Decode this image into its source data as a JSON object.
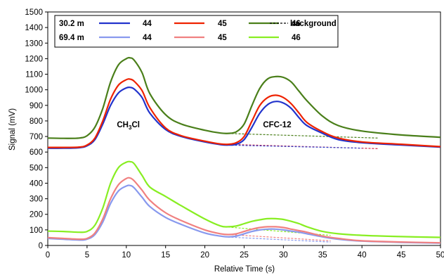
{
  "chart_data": {
    "type": "line",
    "xlabel": "Relative Time (s)",
    "ylabel": "Signal (mV)",
    "xlim": [
      0,
      50
    ],
    "ylim": [
      0,
      1500
    ],
    "x_ticks": [
      0,
      5,
      10,
      15,
      20,
      25,
      30,
      35,
      40,
      45,
      50
    ],
    "y_ticks": [
      0,
      100,
      200,
      300,
      400,
      500,
      600,
      700,
      800,
      900,
      1000,
      1100,
      1200,
      1300,
      1400,
      1500
    ],
    "grid": false,
    "legend": {
      "placement": "top-left",
      "row_labels": [
        "30.2 m",
        "69.4 m"
      ],
      "entries": [
        {
          "row": 0,
          "label": "44",
          "color": "#2233cc",
          "dash": false
        },
        {
          "row": 0,
          "label": "45",
          "color": "#ee2200",
          "dash": false
        },
        {
          "row": 0,
          "label": "46",
          "color": "#4a7f1a",
          "dash": false
        },
        {
          "row": 0,
          "label": "background",
          "color": "#000000",
          "dash": true
        },
        {
          "row": 1,
          "label": "44",
          "color": "#8899ee",
          "dash": false
        },
        {
          "row": 1,
          "label": "45",
          "color": "#f08080",
          "dash": false
        },
        {
          "row": 1,
          "label": "46",
          "color": "#88ee22",
          "dash": false
        }
      ]
    },
    "annotations": [
      {
        "text": "CH",
        "sub": "3",
        "tail": "Cl",
        "x": 8.8,
        "y": 760
      },
      {
        "text": "CFC-12",
        "x": 27.4,
        "y": 760
      }
    ],
    "x": [
      0,
      2,
      4,
      5,
      6,
      7,
      8,
      9,
      10,
      10.5,
      11,
      12,
      13,
      15,
      17,
      20,
      22,
      23,
      24,
      25,
      26,
      27,
      28,
      29,
      30,
      31,
      32,
      33,
      35,
      37,
      40,
      45,
      50
    ],
    "series": [
      {
        "name": "30.2 m 44",
        "color": "#2233cc",
        "dash": false,
        "values": [
          625,
          625,
          628,
          640,
          680,
          780,
          900,
          980,
          1012,
          1015,
          1005,
          950,
          850,
          745,
          700,
          665,
          648,
          645,
          650,
          680,
          760,
          850,
          905,
          925,
          915,
          880,
          820,
          770,
          720,
          680,
          660,
          645,
          632
        ]
      },
      {
        "name": "30.2 m 45",
        "color": "#ee2200",
        "dash": false,
        "values": [
          630,
          630,
          632,
          645,
          690,
          800,
          940,
          1030,
          1065,
          1068,
          1055,
          995,
          885,
          755,
          705,
          670,
          652,
          650,
          660,
          700,
          800,
          900,
          950,
          965,
          950,
          910,
          850,
          790,
          730,
          690,
          665,
          650,
          635
        ]
      },
      {
        "name": "30.2 m 46",
        "color": "#4a7f1a",
        "dash": false,
        "values": [
          690,
          688,
          690,
          705,
          760,
          880,
          1050,
          1160,
          1200,
          1205,
          1190,
          1110,
          975,
          840,
          780,
          740,
          722,
          720,
          730,
          780,
          900,
          1010,
          1070,
          1085,
          1080,
          1050,
          990,
          930,
          830,
          770,
          735,
          710,
          695
        ]
      },
      {
        "name": "69.4 m 44",
        "color": "#8899ee",
        "dash": false,
        "values": [
          45,
          40,
          35,
          40,
          70,
          150,
          270,
          350,
          382,
          385,
          370,
          310,
          250,
          180,
          135,
          80,
          60,
          55,
          60,
          75,
          90,
          100,
          105,
          105,
          100,
          92,
          85,
          75,
          55,
          40,
          28,
          20,
          15
        ]
      },
      {
        "name": "69.4 m 45",
        "color": "#f08080",
        "dash": false,
        "values": [
          50,
          45,
          40,
          45,
          80,
          170,
          300,
          390,
          430,
          433,
          415,
          355,
          290,
          210,
          160,
          100,
          75,
          70,
          75,
          90,
          105,
          115,
          120,
          120,
          115,
          105,
          95,
          85,
          60,
          45,
          30,
          22,
          17
        ]
      },
      {
        "name": "69.4 m 46",
        "color": "#88ee22",
        "dash": false,
        "values": [
          92,
          90,
          85,
          90,
          130,
          240,
          400,
          500,
          535,
          538,
          525,
          450,
          375,
          315,
          255,
          170,
          125,
          120,
          125,
          140,
          155,
          165,
          172,
          172,
          167,
          155,
          140,
          120,
          90,
          75,
          65,
          57,
          52
        ]
      }
    ],
    "background_lines": [
      {
        "color": "#4a7f1a",
        "x": [
          22.5,
          42
        ],
        "values": [
          720,
          690
        ]
      },
      {
        "color": "#cc2244",
        "x": [
          22.5,
          42
        ],
        "values": [
          650,
          622
        ]
      },
      {
        "color": "#3344cc",
        "x": [
          22.5,
          40
        ],
        "values": [
          645,
          625
        ]
      },
      {
        "color": "#88ee22",
        "x": [
          22.5,
          36
        ],
        "values": [
          120,
          65
        ]
      },
      {
        "color": "#f08080",
        "x": [
          22.5,
          36
        ],
        "values": [
          72,
          30
        ]
      },
      {
        "color": "#8899ee",
        "x": [
          22.5,
          36
        ],
        "values": [
          55,
          22
        ]
      }
    ]
  }
}
